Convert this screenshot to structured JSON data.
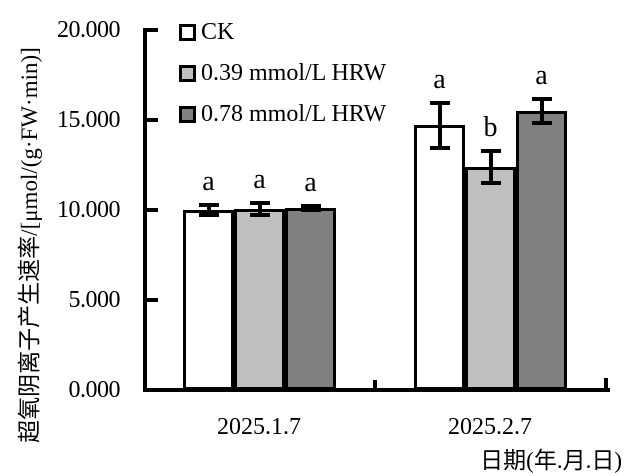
{
  "chart_data": {
    "type": "bar",
    "title": "",
    "ylabel": "超氧阴离子产生速率/[μmol/(g·FW·min)]",
    "xlabel": "日期(年.月.日)",
    "categories": [
      "2025.1.7",
      "2025.2.7"
    ],
    "series": [
      {
        "name": "CK",
        "fill": "#ffffff",
        "values": [
          10.0,
          14.7
        ],
        "errors": [
          0.3,
          1.25
        ],
        "sig_letters": [
          "a",
          "a"
        ]
      },
      {
        "name": "0.39 mmol/L HRW",
        "fill": "#c0c0c0",
        "values": [
          10.05,
          12.4
        ],
        "errors": [
          0.35,
          0.9
        ],
        "sig_letters": [
          "a",
          "b"
        ]
      },
      {
        "name": "0.78 mmol/L HRW",
        "fill": "#808080",
        "values": [
          10.1,
          15.5
        ],
        "errors": [
          0.1,
          0.65
        ],
        "sig_letters": [
          "a",
          "a"
        ]
      }
    ],
    "ylim": [
      0,
      20
    ],
    "yticks": [
      20,
      15,
      10,
      5,
      0
    ],
    "ytick_labels": [
      "20.000",
      "15.000",
      "10.000",
      "5.000",
      "0.000"
    ],
    "legend_position": "top-left-inside",
    "grid": false,
    "bar_outline_color": "#000000",
    "error_bar_color": "#000000"
  }
}
